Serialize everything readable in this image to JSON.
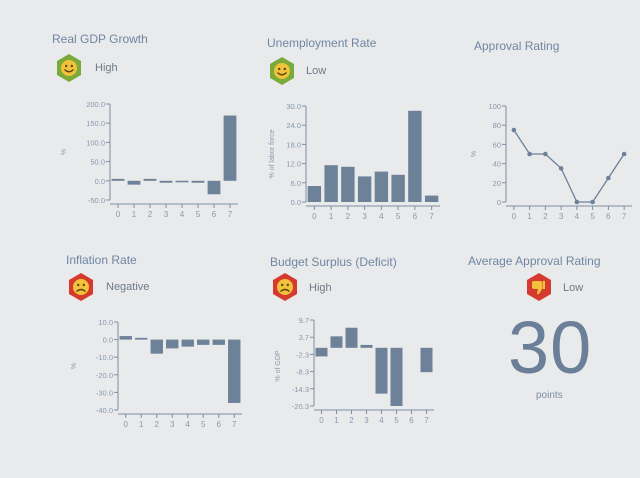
{
  "colors": {
    "bar": "#6d8199",
    "good": "#7aaa3a",
    "bad": "#d63a2e",
    "face": "#f2c33a"
  },
  "panels": [
    {
      "title": "Real GDP Growth",
      "status": "High",
      "mood": "happy"
    },
    {
      "title": "Unemployment Rate",
      "status": "Low",
      "mood": "happy"
    },
    {
      "title": "Approval Rating",
      "status": "",
      "mood": ""
    },
    {
      "title": "Inflation Rate",
      "status": "Negative",
      "mood": "sad"
    },
    {
      "title": "Budget Surplus (Deficit)",
      "status": "High",
      "mood": "sad"
    },
    {
      "title": "Average Approval Rating",
      "status": "Low",
      "mood": "thumbs-down"
    }
  ],
  "average_approval": {
    "value": "30",
    "unit": "points"
  },
  "chart_data": [
    {
      "type": "bar",
      "title": "Real GDP Growth",
      "ylabel": "%",
      "xlabel": "",
      "x": [
        "0",
        "1",
        "2",
        "3",
        "4",
        "5",
        "6",
        "7"
      ],
      "values": [
        5,
        -10,
        5,
        -5,
        0,
        -5,
        -35,
        170
      ],
      "ylim": [
        -50,
        200
      ],
      "yticks": [
        "200.0",
        "150.0",
        "100.0",
        "50.0",
        "0.0",
        "-50.0"
      ]
    },
    {
      "type": "bar",
      "title": "Unemployment Rate",
      "ylabel": "% of labor force",
      "xlabel": "",
      "x": [
        "0",
        "1",
        "2",
        "3",
        "4",
        "5",
        "6",
        "7"
      ],
      "values": [
        5,
        11.5,
        11,
        8,
        9.5,
        8.5,
        28.5,
        2
      ],
      "ylim": [
        0,
        30
      ],
      "yticks": [
        "30.0",
        "24.0",
        "18.0",
        "12.0",
        "6.0",
        "0.0"
      ]
    },
    {
      "type": "line",
      "title": "Approval Rating",
      "ylabel": "%",
      "xlabel": "",
      "x": [
        "0",
        "1",
        "2",
        "3",
        "4",
        "5",
        "6",
        "7"
      ],
      "values": [
        75,
        50,
        50,
        35,
        0,
        0,
        25,
        50
      ],
      "ylim": [
        0,
        100
      ],
      "yticks": [
        "100",
        "80",
        "60",
        "40",
        "20",
        "0"
      ]
    },
    {
      "type": "bar",
      "title": "Inflation Rate",
      "ylabel": "%",
      "xlabel": "",
      "x": [
        "0",
        "1",
        "2",
        "3",
        "4",
        "5",
        "6",
        "7"
      ],
      "values": [
        2,
        1,
        -8,
        -5,
        -4,
        -3,
        -3,
        -36
      ],
      "ylim": [
        -40,
        10
      ],
      "yticks": [
        "10.0",
        "0.0",
        "-10.0",
        "-20.0",
        "-30.0",
        "-40.0"
      ]
    },
    {
      "type": "bar",
      "title": "Budget Surplus (Deficit)",
      "ylabel": "% of GDP",
      "xlabel": "",
      "x": [
        "0",
        "1",
        "2",
        "3",
        "4",
        "5",
        "6",
        "7"
      ],
      "values": [
        -3,
        4,
        7,
        1,
        -16,
        -20.3,
        null,
        -8.5
      ],
      "ylim": [
        -20.3,
        9.7
      ],
      "yticks": [
        "9.7",
        "3.7",
        "-2.3",
        "-8.3",
        "-14.3",
        "-20.3"
      ]
    }
  ]
}
